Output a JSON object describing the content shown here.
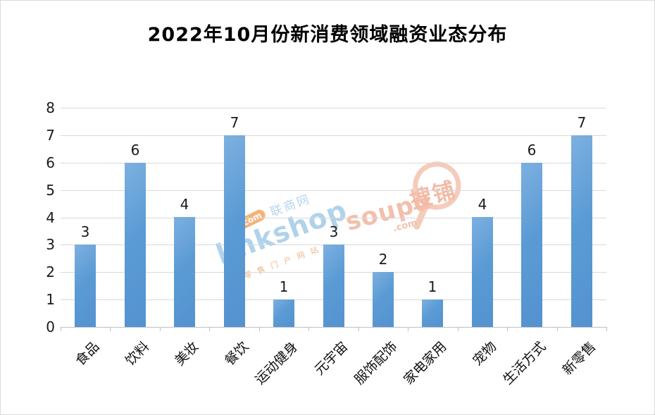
{
  "title": "2022年10月份新消费领域融资业态分布",
  "chart_data": {
    "type": "bar",
    "title": "2022年10月份新消费领域融资业态分布",
    "categories": [
      "食品",
      "饮料",
      "美妆",
      "餐饮",
      "运动健身",
      "元宇宙",
      "服饰配饰",
      "家电家用",
      "宠物",
      "生活方式",
      "新零售"
    ],
    "values": [
      3,
      6,
      4,
      7,
      1,
      3,
      2,
      1,
      4,
      6,
      7
    ],
    "xlabel": "",
    "ylabel": "",
    "ylim": [
      0,
      8
    ],
    "ytick_step": 1,
    "yticks": [
      0,
      1,
      2,
      3,
      4,
      5,
      6,
      7,
      8
    ],
    "grid": true,
    "legend_position": "none",
    "bar_color": "#5B9BD5",
    "gridline_color": "#D9D9D9",
    "axis_color": "#BFBFBF",
    "text_color": "#1A1A1A"
  },
  "watermarks": {
    "linkshop": {
      "brand": "linkshop",
      "dot_com": ".com",
      "cn_name": "联商网",
      "tagline": "零售门户网站",
      "brand_color": "#A3CBE8",
      "accent_color": "#F2A75F"
    },
    "soupu": {
      "brand": "soupu",
      "dot_com": ".com",
      "cn_name": "搜铺",
      "brand_color": "#F2B49E"
    }
  }
}
